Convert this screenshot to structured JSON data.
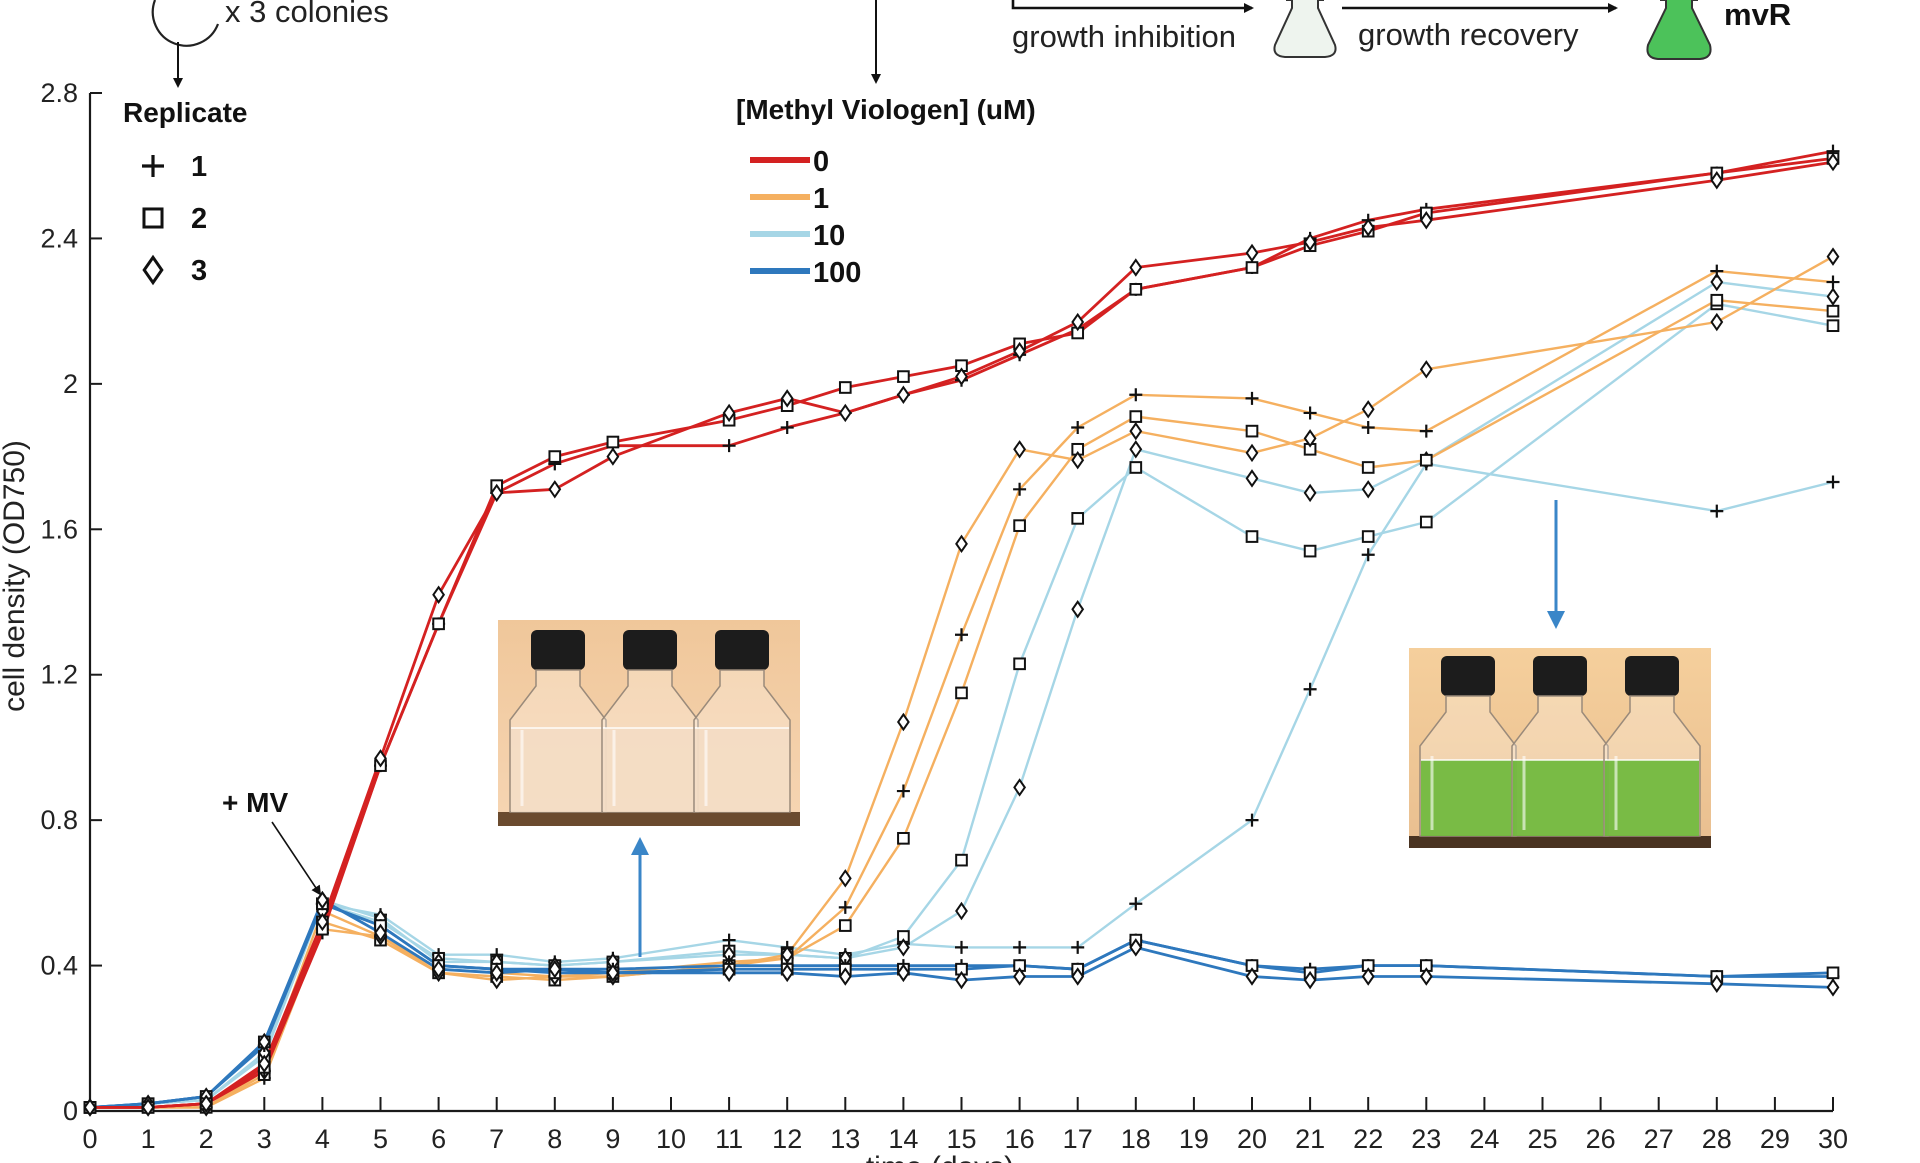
{
  "chart_data": {
    "type": "line",
    "xlabel": "time (days)",
    "ylabel": "cell density (OD750)",
    "xlim": [
      0,
      30
    ],
    "ylim": [
      0,
      2.8
    ],
    "xticks": [
      "0",
      "1",
      "2",
      "3",
      "4",
      "5",
      "6",
      "7",
      "8",
      "9",
      "10",
      "11",
      "12",
      "13",
      "14",
      "15",
      "16",
      "17",
      "18",
      "19",
      "20",
      "21",
      "22",
      "23",
      "24",
      "25",
      "26",
      "27",
      "28",
      "29",
      "30"
    ],
    "yticks": [
      "0",
      "0.4",
      "0.8",
      "1.2",
      "1.6",
      "2",
      "2.4",
      "2.8"
    ],
    "grid": false,
    "replicate_legend": {
      "title": "Replicate",
      "entries": [
        {
          "label": "1",
          "marker": "plus"
        },
        {
          "label": "2",
          "marker": "square"
        },
        {
          "label": "3",
          "marker": "diamond"
        }
      ]
    },
    "concentration_legend": {
      "title": "[Methyl Viologen] (uM)",
      "entries": [
        {
          "label": "0",
          "color": "#d42121"
        },
        {
          "label": "1",
          "color": "#f5b060"
        },
        {
          "label": "10",
          "color": "#a6d6e6"
        },
        {
          "label": "100",
          "color": "#2e78bd"
        }
      ]
    },
    "series": [
      {
        "concentration": "0",
        "replicate": "1",
        "color": "#d42121",
        "marker": "plus",
        "x": [
          0,
          1,
          2,
          3,
          4,
          5,
          6,
          7,
          8,
          9,
          11,
          12,
          13,
          14,
          15,
          16,
          17,
          18,
          20,
          21,
          22,
          23,
          28,
          30
        ],
        "y": [
          0.01,
          0.01,
          0.02,
          0.11,
          0.49,
          0.95,
          1.34,
          1.7,
          1.78,
          1.83,
          1.83,
          1.88,
          1.92,
          1.97,
          2.01,
          2.08,
          2.15,
          2.26,
          2.32,
          2.4,
          2.45,
          2.48,
          2.58,
          2.64
        ]
      },
      {
        "concentration": "0",
        "replicate": "2",
        "color": "#d42121",
        "marker": "square",
        "x": [
          0,
          1,
          2,
          3,
          4,
          5,
          6,
          7,
          8,
          9,
          11,
          12,
          13,
          14,
          15,
          16,
          17,
          18,
          20,
          21,
          22,
          23,
          28,
          30
        ],
        "y": [
          0.01,
          0.01,
          0.02,
          0.12,
          0.5,
          0.95,
          1.34,
          1.72,
          1.8,
          1.84,
          1.9,
          1.94,
          1.99,
          2.02,
          2.05,
          2.11,
          2.14,
          2.26,
          2.32,
          2.38,
          2.42,
          2.47,
          2.58,
          2.62
        ]
      },
      {
        "concentration": "0",
        "replicate": "3",
        "color": "#d42121",
        "marker": "diamond",
        "x": [
          0,
          1,
          2,
          3,
          4,
          5,
          6,
          7,
          8,
          9,
          11,
          12,
          13,
          14,
          15,
          16,
          17,
          18,
          20,
          21,
          22,
          23,
          28,
          30
        ],
        "y": [
          0.01,
          0.01,
          0.02,
          0.13,
          0.52,
          0.97,
          1.42,
          1.7,
          1.71,
          1.8,
          1.92,
          1.96,
          1.92,
          1.97,
          2.02,
          2.09,
          2.17,
          2.32,
          2.36,
          2.39,
          2.43,
          2.45,
          2.56,
          2.61
        ]
      },
      {
        "concentration": "1",
        "replicate": "1",
        "color": "#f5b060",
        "marker": "plus",
        "x": [
          0,
          1,
          2,
          3,
          4,
          5,
          6,
          7,
          8,
          9,
          11,
          12,
          13,
          14,
          15,
          16,
          17,
          18,
          20,
          21,
          22,
          23,
          28,
          30
        ],
        "y": [
          0.01,
          0.01,
          0.01,
          0.09,
          0.5,
          0.48,
          0.39,
          0.38,
          0.37,
          0.38,
          0.41,
          0.42,
          0.56,
          0.88,
          1.31,
          1.71,
          1.88,
          1.97,
          1.96,
          1.92,
          1.88,
          1.87,
          2.31,
          2.28
        ]
      },
      {
        "concentration": "1",
        "replicate": "2",
        "color": "#f5b060",
        "marker": "square",
        "x": [
          0,
          1,
          2,
          3,
          4,
          5,
          6,
          7,
          8,
          9,
          11,
          12,
          13,
          14,
          15,
          16,
          17,
          18,
          20,
          21,
          22,
          23,
          28,
          30
        ],
        "y": [
          0.01,
          0.01,
          0.01,
          0.1,
          0.52,
          0.47,
          0.38,
          0.37,
          0.36,
          0.37,
          0.4,
          0.42,
          0.51,
          0.75,
          1.15,
          1.61,
          1.82,
          1.91,
          1.87,
          1.82,
          1.77,
          1.79,
          2.23,
          2.2
        ]
      },
      {
        "concentration": "1",
        "replicate": "3",
        "color": "#f5b060",
        "marker": "diamond",
        "x": [
          0,
          1,
          2,
          3,
          4,
          5,
          6,
          7,
          8,
          9,
          11,
          12,
          13,
          14,
          15,
          16,
          17,
          18,
          20,
          21,
          22,
          23,
          28,
          30
        ],
        "y": [
          0.01,
          0.01,
          0.01,
          0.11,
          0.55,
          0.48,
          0.38,
          0.36,
          0.37,
          0.37,
          0.4,
          0.43,
          0.64,
          1.07,
          1.56,
          1.82,
          1.79,
          1.87,
          1.81,
          1.85,
          1.93,
          2.04,
          2.17,
          2.35
        ]
      },
      {
        "concentration": "10",
        "replicate": "1",
        "color": "#a6d6e6",
        "marker": "plus",
        "x": [
          0,
          1,
          2,
          3,
          4,
          5,
          6,
          7,
          8,
          9,
          11,
          12,
          13,
          14,
          15,
          16,
          17,
          18,
          20,
          21,
          22,
          23,
          28,
          30
        ],
        "y": [
          0.01,
          0.02,
          0.03,
          0.15,
          0.57,
          0.54,
          0.43,
          0.43,
          0.41,
          0.42,
          0.47,
          0.45,
          0.43,
          0.46,
          0.45,
          0.45,
          0.45,
          0.57,
          0.8,
          1.16,
          1.53,
          1.78,
          1.65,
          1.73
        ]
      },
      {
        "concentration": "10",
        "replicate": "2",
        "color": "#a6d6e6",
        "marker": "square",
        "x": [
          0,
          1,
          2,
          3,
          4,
          5,
          6,
          7,
          8,
          9,
          11,
          12,
          13,
          14,
          15,
          16,
          17,
          18,
          20,
          21,
          22,
          23,
          28,
          30
        ],
        "y": [
          0.01,
          0.02,
          0.03,
          0.15,
          0.57,
          0.52,
          0.42,
          0.41,
          0.4,
          0.41,
          0.44,
          0.43,
          0.42,
          0.48,
          0.69,
          1.23,
          1.63,
          1.77,
          1.58,
          1.54,
          1.58,
          1.62,
          2.22,
          2.16
        ]
      },
      {
        "concentration": "10",
        "replicate": "3",
        "color": "#a6d6e6",
        "marker": "diamond",
        "x": [
          0,
          1,
          2,
          3,
          4,
          5,
          6,
          7,
          8,
          9,
          11,
          12,
          13,
          14,
          15,
          16,
          17,
          18,
          20,
          21,
          22,
          23,
          28,
          30
        ],
        "y": [
          0.01,
          0.02,
          0.03,
          0.16,
          0.58,
          0.53,
          0.41,
          0.41,
          0.4,
          0.41,
          0.43,
          0.43,
          0.42,
          0.45,
          0.55,
          0.89,
          1.38,
          1.82,
          1.74,
          1.7,
          1.71,
          1.79,
          2.28,
          2.24
        ]
      },
      {
        "concentration": "100",
        "replicate": "1",
        "color": "#2e78bd",
        "marker": "plus",
        "x": [
          0,
          1,
          2,
          3,
          4,
          5,
          6,
          7,
          8,
          9,
          11,
          12,
          13,
          14,
          15,
          16,
          17,
          18,
          20,
          21,
          22,
          23,
          28,
          30
        ],
        "y": [
          0.01,
          0.02,
          0.04,
          0.18,
          0.57,
          0.51,
          0.4,
          0.39,
          0.39,
          0.39,
          0.4,
          0.4,
          0.4,
          0.4,
          0.4,
          0.4,
          0.39,
          0.47,
          0.4,
          0.39,
          0.4,
          0.4,
          0.37,
          0.37
        ]
      },
      {
        "concentration": "100",
        "replicate": "2",
        "color": "#2e78bd",
        "marker": "square",
        "x": [
          0,
          1,
          2,
          3,
          4,
          5,
          6,
          7,
          8,
          9,
          11,
          12,
          13,
          14,
          15,
          16,
          17,
          18,
          20,
          21,
          22,
          23,
          28,
          30
        ],
        "y": [
          0.01,
          0.02,
          0.04,
          0.19,
          0.57,
          0.51,
          0.4,
          0.39,
          0.38,
          0.38,
          0.39,
          0.39,
          0.39,
          0.39,
          0.39,
          0.4,
          0.39,
          0.47,
          0.4,
          0.38,
          0.4,
          0.4,
          0.37,
          0.38
        ]
      },
      {
        "concentration": "100",
        "replicate": "3",
        "color": "#2e78bd",
        "marker": "diamond",
        "x": [
          0,
          1,
          2,
          3,
          4,
          5,
          6,
          7,
          8,
          9,
          11,
          12,
          13,
          14,
          15,
          16,
          17,
          18,
          20,
          21,
          22,
          23,
          28,
          30
        ],
        "y": [
          0.01,
          0.02,
          0.04,
          0.19,
          0.58,
          0.49,
          0.39,
          0.38,
          0.39,
          0.38,
          0.38,
          0.38,
          0.37,
          0.38,
          0.36,
          0.37,
          0.37,
          0.45,
          0.37,
          0.36,
          0.37,
          0.37,
          0.35,
          0.34
        ]
      }
    ]
  },
  "annotations": {
    "colonies_text": "x 3 colonies",
    "growth_inhibition": "growth inhibition",
    "growth_recovery": "growth recovery",
    "mvr_label": "mvR",
    "mv_added": "+ MV"
  },
  "photos": {
    "left": {
      "content": "three-clear-culture-flasks",
      "liquid_color": "#f3dcc4"
    },
    "right": {
      "content": "three-green-culture-flasks",
      "liquid_color": "#6fb93c"
    }
  },
  "colors": {
    "axis": "#1a1a1a",
    "arrow_blue": "#3a86c8",
    "flask_green": "#4cc25a"
  }
}
